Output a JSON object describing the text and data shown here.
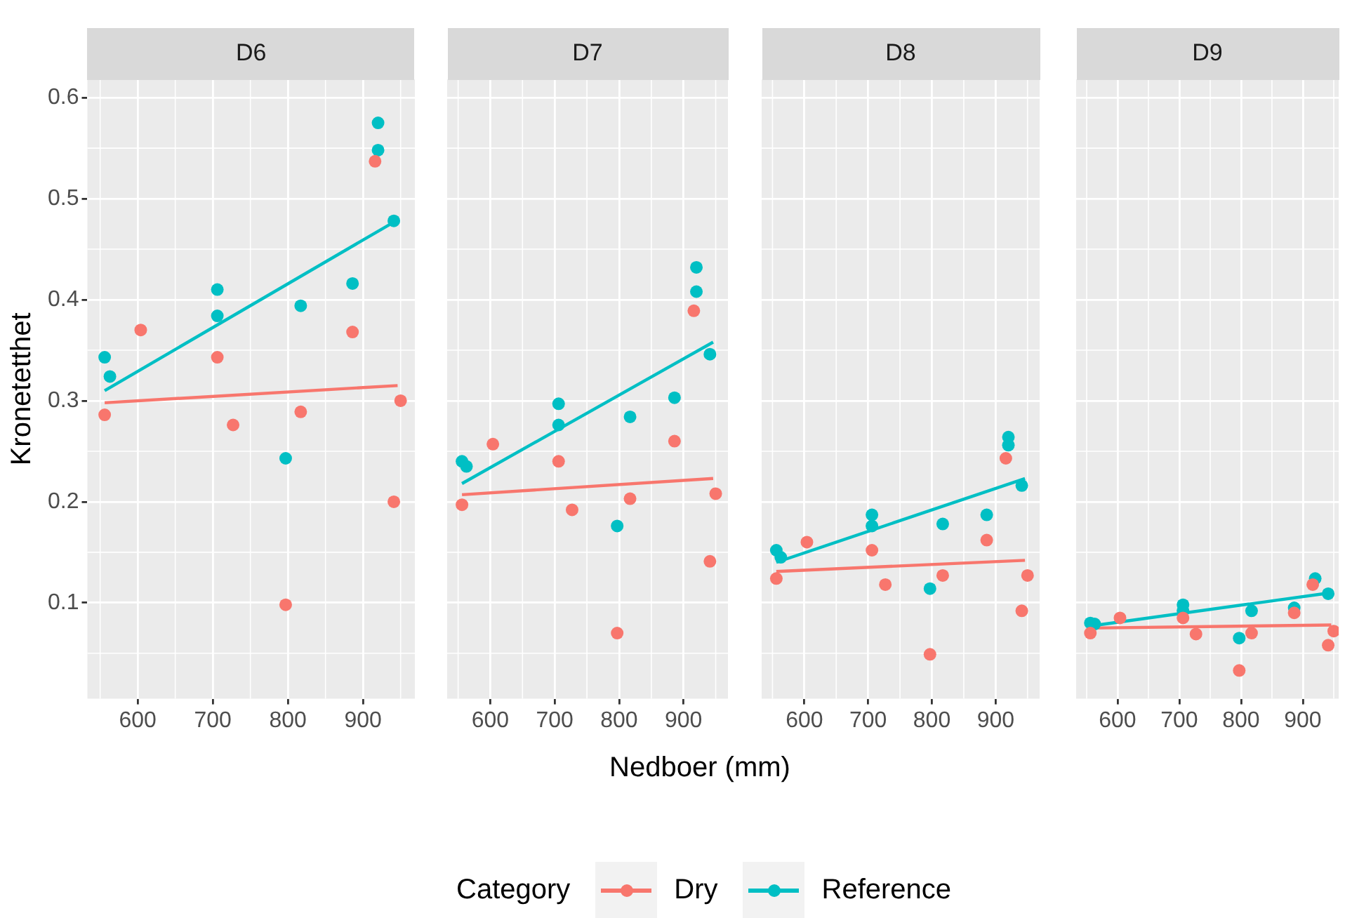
{
  "chart_data": [
    {
      "type": "scatter",
      "title": "D6",
      "ylabel": "Kronetetthet",
      "legend_title": "Category",
      "legend": "bottom",
      "grid": true,
      "xlim": [
        533,
        969
      ],
      "xticks": [
        600,
        700,
        800,
        900
      ],
      "ylim": [
        0.005,
        0.618
      ],
      "yticks": [
        0.1,
        0.2,
        0.3,
        0.4,
        0.5,
        0.6
      ],
      "series": [
        {
          "name": "Dry",
          "color": "#f8766d",
          "marker": "circle",
          "x": [
            556,
            604,
            706,
            727,
            797,
            817,
            886,
            916,
            950,
            941
          ],
          "values": [
            0.286,
            0.37,
            0.343,
            0.276,
            0.098,
            0.289,
            0.368,
            0.537,
            0.3,
            0.2
          ]
        },
        {
          "name": "Reference",
          "color": "#00bfc4",
          "marker": "circle",
          "x": [
            556,
            563,
            706,
            706,
            797,
            817,
            886,
            920,
            920,
            941
          ],
          "values": [
            0.343,
            0.324,
            0.41,
            0.384,
            0.243,
            0.394,
            0.416,
            0.575,
            0.548,
            0.478
          ]
        },
        {
          "type": "line",
          "line_style": "solid",
          "color": "#f8766d",
          "x": [
            556,
            946
          ],
          "values": [
            0.298,
            0.315
          ]
        },
        {
          "type": "line",
          "line_style": "solid",
          "color": "#00bfc4",
          "x": [
            556,
            946
          ],
          "values": [
            0.31,
            0.479
          ]
        }
      ]
    },
    {
      "type": "scatter",
      "title": "D7",
      "xlabel": "Nedboer (mm)",
      "grid": true,
      "tick_labels": "x",
      "xlim": [
        533,
        969
      ],
      "xticks": [
        600,
        700,
        800,
        900
      ],
      "ylim": [
        0.005,
        0.618
      ],
      "yticks": [
        0.1,
        0.2,
        0.3,
        0.4,
        0.5,
        0.6
      ],
      "series": [
        {
          "color": "#f8766d",
          "marker": "circle",
          "x": [
            556,
            604,
            706,
            727,
            797,
            817,
            886,
            916,
            950,
            941
          ],
          "values": [
            0.197,
            0.257,
            0.24,
            0.192,
            0.07,
            0.203,
            0.26,
            0.389,
            0.208,
            0.141
          ]
        },
        {
          "color": "#00bfc4",
          "marker": "circle",
          "x": [
            556,
            563,
            706,
            706,
            797,
            817,
            886,
            920,
            920,
            941
          ],
          "values": [
            0.24,
            0.235,
            0.297,
            0.276,
            0.176,
            0.284,
            0.303,
            0.432,
            0.408,
            0.346
          ]
        },
        {
          "type": "line",
          "line_style": "solid",
          "color": "#f8766d",
          "x": [
            556,
            946
          ],
          "values": [
            0.207,
            0.223
          ]
        },
        {
          "type": "line",
          "line_style": "solid",
          "color": "#00bfc4",
          "x": [
            556,
            946
          ],
          "values": [
            0.218,
            0.358
          ]
        }
      ]
    },
    {
      "type": "scatter",
      "title": "D8",
      "grid": true,
      "tick_labels": "x",
      "xlim": [
        533,
        969
      ],
      "xticks": [
        600,
        700,
        800,
        900
      ],
      "ylim": [
        0.005,
        0.618
      ],
      "yticks": [
        0.1,
        0.2,
        0.3,
        0.4,
        0.5,
        0.6
      ],
      "series": [
        {
          "color": "#f8766d",
          "marker": "circle",
          "x": [
            556,
            604,
            706,
            727,
            797,
            817,
            886,
            916,
            950,
            941
          ],
          "values": [
            0.124,
            0.16,
            0.152,
            0.118,
            0.049,
            0.127,
            0.162,
            0.243,
            0.127,
            0.092
          ]
        },
        {
          "color": "#00bfc4",
          "marker": "circle",
          "x": [
            556,
            563,
            706,
            706,
            797,
            817,
            886,
            920,
            920,
            941
          ],
          "values": [
            0.152,
            0.145,
            0.187,
            0.176,
            0.114,
            0.178,
            0.187,
            0.264,
            0.256,
            0.216
          ]
        },
        {
          "type": "line",
          "line_style": "solid",
          "color": "#f8766d",
          "x": [
            556,
            946
          ],
          "values": [
            0.131,
            0.142
          ]
        },
        {
          "type": "line",
          "line_style": "solid",
          "color": "#00bfc4",
          "x": [
            556,
            946
          ],
          "values": [
            0.14,
            0.223
          ]
        }
      ]
    },
    {
      "type": "scatter",
      "title": "D9",
      "grid": true,
      "tick_labels": "x",
      "xlim": [
        533,
        958
      ],
      "xticks": [
        600,
        700,
        800,
        900
      ],
      "ylim": [
        0.005,
        0.618
      ],
      "yticks": [
        0.1,
        0.2,
        0.3,
        0.4,
        0.5,
        0.6
      ],
      "series": [
        {
          "color": "#f8766d",
          "marker": "circle",
          "x": [
            556,
            604,
            706,
            727,
            797,
            817,
            886,
            916,
            950,
            941
          ],
          "values": [
            0.07,
            0.085,
            0.085,
            0.069,
            0.033,
            0.07,
            0.09,
            0.118,
            0.072,
            0.058
          ]
        },
        {
          "color": "#00bfc4",
          "marker": "circle",
          "x": [
            556,
            563,
            706,
            706,
            797,
            817,
            886,
            920,
            941
          ],
          "values": [
            0.08,
            0.079,
            0.098,
            0.092,
            0.065,
            0.092,
            0.095,
            0.124,
            0.109
          ]
        },
        {
          "type": "line",
          "line_style": "solid",
          "color": "#f8766d",
          "x": [
            556,
            946
          ],
          "values": [
            0.075,
            0.078
          ]
        },
        {
          "type": "line",
          "line_style": "solid",
          "color": "#00bfc4",
          "x": [
            556,
            946
          ],
          "values": [
            0.077,
            0.11
          ]
        }
      ]
    }
  ]
}
